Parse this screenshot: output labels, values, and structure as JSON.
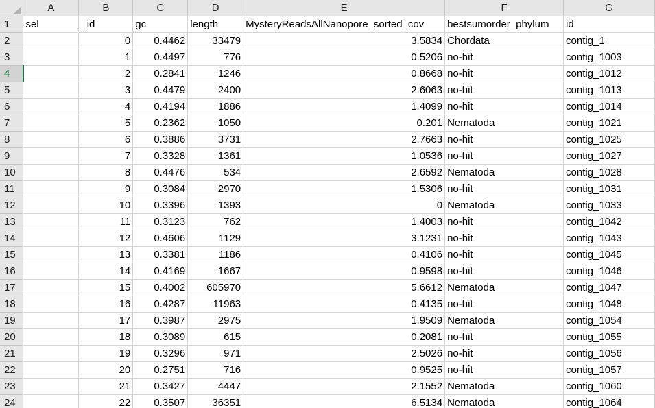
{
  "columns": [
    "A",
    "B",
    "C",
    "D",
    "E",
    "F",
    "G"
  ],
  "active_row": 4,
  "colors": {
    "header_bg": "#e6e6e6",
    "gridline": "#d4d4d4",
    "active_accent": "#217346"
  },
  "rows": [
    {
      "n": "1",
      "cells": [
        "sel",
        "_id",
        "gc",
        "length",
        "MysteryReadsAllNanopore_sorted_cov",
        "bestsumorder_phylum",
        "id"
      ]
    },
    {
      "n": "2",
      "cells": [
        "",
        "0",
        "0.4462",
        "33479",
        "3.5834",
        "Chordata",
        "contig_1"
      ]
    },
    {
      "n": "3",
      "cells": [
        "",
        "1",
        "0.4497",
        "776",
        "0.5206",
        "no-hit",
        "contig_1003"
      ]
    },
    {
      "n": "4",
      "cells": [
        "",
        "2",
        "0.2841",
        "1246",
        "0.8668",
        "no-hit",
        "contig_1012"
      ]
    },
    {
      "n": "5",
      "cells": [
        "",
        "3",
        "0.4479",
        "2400",
        "2.6063",
        "no-hit",
        "contig_1013"
      ]
    },
    {
      "n": "6",
      "cells": [
        "",
        "4",
        "0.4194",
        "1886",
        "1.4099",
        "no-hit",
        "contig_1014"
      ]
    },
    {
      "n": "7",
      "cells": [
        "",
        "5",
        "0.2362",
        "1050",
        "0.201",
        "Nematoda",
        "contig_1021"
      ]
    },
    {
      "n": "8",
      "cells": [
        "",
        "6",
        "0.3886",
        "3731",
        "2.7663",
        "no-hit",
        "contig_1025"
      ]
    },
    {
      "n": "9",
      "cells": [
        "",
        "7",
        "0.3328",
        "1361",
        "1.0536",
        "no-hit",
        "contig_1027"
      ]
    },
    {
      "n": "10",
      "cells": [
        "",
        "8",
        "0.4476",
        "534",
        "2.6592",
        "Nematoda",
        "contig_1028"
      ]
    },
    {
      "n": "11",
      "cells": [
        "",
        "9",
        "0.3084",
        "2970",
        "1.5306",
        "no-hit",
        "contig_1031"
      ]
    },
    {
      "n": "12",
      "cells": [
        "",
        "10",
        "0.3396",
        "1393",
        "0",
        "Nematoda",
        "contig_1033"
      ]
    },
    {
      "n": "13",
      "cells": [
        "",
        "11",
        "0.3123",
        "762",
        "1.4003",
        "no-hit",
        "contig_1042"
      ]
    },
    {
      "n": "14",
      "cells": [
        "",
        "12",
        "0.4606",
        "1129",
        "3.1231",
        "no-hit",
        "contig_1043"
      ]
    },
    {
      "n": "15",
      "cells": [
        "",
        "13",
        "0.3381",
        "1186",
        "0.4106",
        "no-hit",
        "contig_1045"
      ]
    },
    {
      "n": "16",
      "cells": [
        "",
        "14",
        "0.4169",
        "1667",
        "0.9598",
        "no-hit",
        "contig_1046"
      ]
    },
    {
      "n": "17",
      "cells": [
        "",
        "15",
        "0.4002",
        "605970",
        "5.6612",
        "Nematoda",
        "contig_1047"
      ]
    },
    {
      "n": "18",
      "cells": [
        "",
        "16",
        "0.4287",
        "11963",
        "0.4135",
        "no-hit",
        "contig_1048"
      ]
    },
    {
      "n": "19",
      "cells": [
        "",
        "17",
        "0.3987",
        "2975",
        "1.9509",
        "Nematoda",
        "contig_1054"
      ]
    },
    {
      "n": "20",
      "cells": [
        "",
        "18",
        "0.3089",
        "615",
        "0.2081",
        "no-hit",
        "contig_1055"
      ]
    },
    {
      "n": "21",
      "cells": [
        "",
        "19",
        "0.3296",
        "971",
        "2.5026",
        "no-hit",
        "contig_1056"
      ]
    },
    {
      "n": "22",
      "cells": [
        "",
        "20",
        "0.2751",
        "716",
        "0.9525",
        "no-hit",
        "contig_1057"
      ]
    },
    {
      "n": "23",
      "cells": [
        "",
        "21",
        "0.3427",
        "4447",
        "2.1552",
        "Nematoda",
        "contig_1060"
      ]
    },
    {
      "n": "24",
      "cells": [
        "",
        "22",
        "0.3507",
        "36351",
        "6.5134",
        "Nematoda",
        "contig_1064"
      ]
    }
  ]
}
